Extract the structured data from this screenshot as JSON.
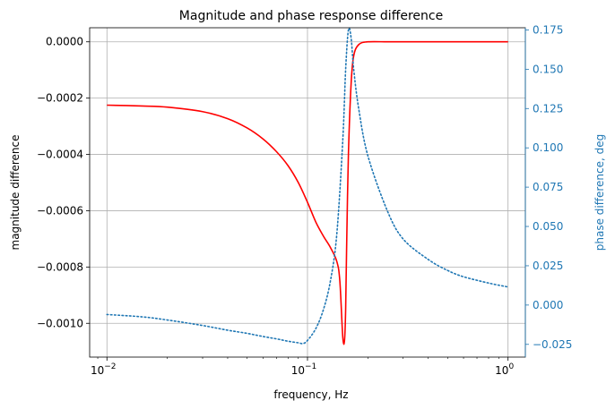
{
  "chart_data": {
    "type": "line",
    "title": "Magnitude and phase response difference",
    "xlabel": "frequency, Hz",
    "ylabel_left": "magnitude difference",
    "ylabel_right": "phase difference, deg",
    "xscale": "log",
    "xlim": [
      0.0082,
      1.22
    ],
    "ylim_left": [
      -0.00112,
      5e-05
    ],
    "ylim_right": [
      -0.0331,
      0.1764
    ],
    "grid": true,
    "x_ticks": [
      {
        "value": 0.01,
        "label": "10",
        "exp": "−2"
      },
      {
        "value": 0.1,
        "label": "10",
        "exp": "−1"
      },
      {
        "value": 1,
        "label": "10",
        "exp": "0"
      }
    ],
    "y_left_ticks": [
      {
        "value": 0,
        "label": "0.0000"
      },
      {
        "value": -0.0002,
        "label": "−0.0002"
      },
      {
        "value": -0.0004,
        "label": "−0.0004"
      },
      {
        "value": -0.0006,
        "label": "−0.0006"
      },
      {
        "value": -0.0008,
        "label": "−0.0008"
      },
      {
        "value": -0.001,
        "label": "−0.0010"
      }
    ],
    "y_right_ticks": [
      {
        "value": -0.025,
        "label": "−0.025"
      },
      {
        "value": 0.0,
        "label": "0.000"
      },
      {
        "value": 0.025,
        "label": "0.025"
      },
      {
        "value": 0.05,
        "label": "0.050"
      },
      {
        "value": 0.075,
        "label": "0.075"
      },
      {
        "value": 0.1,
        "label": "0.100"
      },
      {
        "value": 0.125,
        "label": "0.125"
      },
      {
        "value": 0.15,
        "label": "0.150"
      },
      {
        "value": 0.175,
        "label": "0.175"
      }
    ],
    "series": [
      {
        "axis": "left",
        "style": "solid",
        "color": "#ff0000",
        "x": [
          0.01,
          0.015,
          0.02,
          0.03,
          0.04,
          0.05,
          0.06,
          0.07,
          0.08,
          0.09,
          0.1,
          0.11,
          0.12,
          0.13,
          0.14,
          0.145,
          0.15,
          0.153,
          0.155,
          0.157,
          0.16,
          0.165,
          0.17,
          0.18,
          0.2,
          0.25,
          0.3,
          0.5,
          1.0
        ],
        "y": [
          -0.000225,
          -0.000228,
          -0.000232,
          -0.000248,
          -0.000273,
          -0.000306,
          -0.000345,
          -0.00039,
          -0.00044,
          -0.0005,
          -0.00057,
          -0.00064,
          -0.00069,
          -0.00073,
          -0.00078,
          -0.00085,
          -0.00105,
          -0.00106,
          -0.00095,
          -0.0007,
          -0.0004,
          -0.00015,
          -5e-05,
          -1e-05,
          0.0,
          0.0,
          0.0,
          0.0,
          0.0
        ]
      },
      {
        "axis": "right",
        "style": "dotted",
        "color": "#1f77b4",
        "x": [
          0.01,
          0.015,
          0.02,
          0.03,
          0.04,
          0.05,
          0.06,
          0.07,
          0.08,
          0.09,
          0.095,
          0.1,
          0.11,
          0.12,
          0.13,
          0.14,
          0.15,
          0.155,
          0.16,
          0.165,
          0.17,
          0.18,
          0.2,
          0.25,
          0.3,
          0.4,
          0.5,
          0.6,
          0.8,
          1.0
        ],
        "y": [
          -0.006,
          -0.0075,
          -0.0095,
          -0.013,
          -0.016,
          -0.018,
          -0.02,
          -0.0215,
          -0.023,
          -0.024,
          -0.0245,
          -0.0225,
          -0.015,
          -0.003,
          0.015,
          0.045,
          0.105,
          0.15,
          0.175,
          0.17,
          0.15,
          0.125,
          0.095,
          0.06,
          0.042,
          0.029,
          0.022,
          0.018,
          0.014,
          0.0115
        ]
      }
    ]
  }
}
